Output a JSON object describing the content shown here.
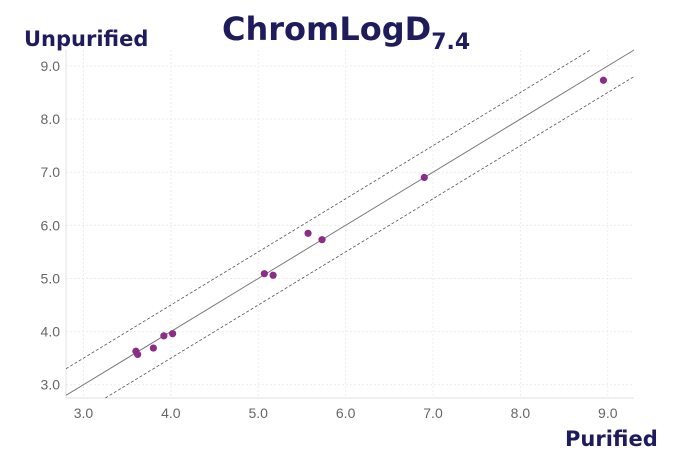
{
  "chart_data": {
    "type": "scatter",
    "title": "ChromLogD",
    "title_subscript": "7.4",
    "xlabel": "Purified",
    "ylabel": "Unpurified",
    "xlim": [
      2.8,
      9.3
    ],
    "ylim": [
      2.75,
      9.3
    ],
    "xticks": [
      "3.0",
      "4.0",
      "5.0",
      "6.0",
      "7.0",
      "8.0",
      "9.0"
    ],
    "yticks": [
      "3.0",
      "4.0",
      "5.0",
      "6.0",
      "7.0",
      "8.0",
      "9.0"
    ],
    "grid": true,
    "series": [
      {
        "points": [
          {
            "x": 3.6,
            "y": 3.63
          },
          {
            "x": 3.62,
            "y": 3.57
          },
          {
            "x": 3.8,
            "y": 3.69
          },
          {
            "x": 3.92,
            "y": 3.92
          },
          {
            "x": 4.02,
            "y": 3.96
          },
          {
            "x": 5.07,
            "y": 5.09
          },
          {
            "x": 5.17,
            "y": 5.06
          },
          {
            "x": 5.57,
            "y": 5.85
          },
          {
            "x": 5.73,
            "y": 5.73
          },
          {
            "x": 6.9,
            "y": 6.9
          },
          {
            "x": 8.95,
            "y": 8.73
          }
        ],
        "color": "#8b2c86"
      }
    ],
    "reference_lines": [
      {
        "kind": "identity",
        "offset": 0,
        "style": "solid",
        "color": "#7a7a7a"
      },
      {
        "kind": "band-upper",
        "offset": 0.5,
        "style": "dashed",
        "color": "#555555"
      },
      {
        "kind": "band-lower",
        "offset": -0.5,
        "style": "dashed",
        "color": "#555555"
      }
    ]
  }
}
